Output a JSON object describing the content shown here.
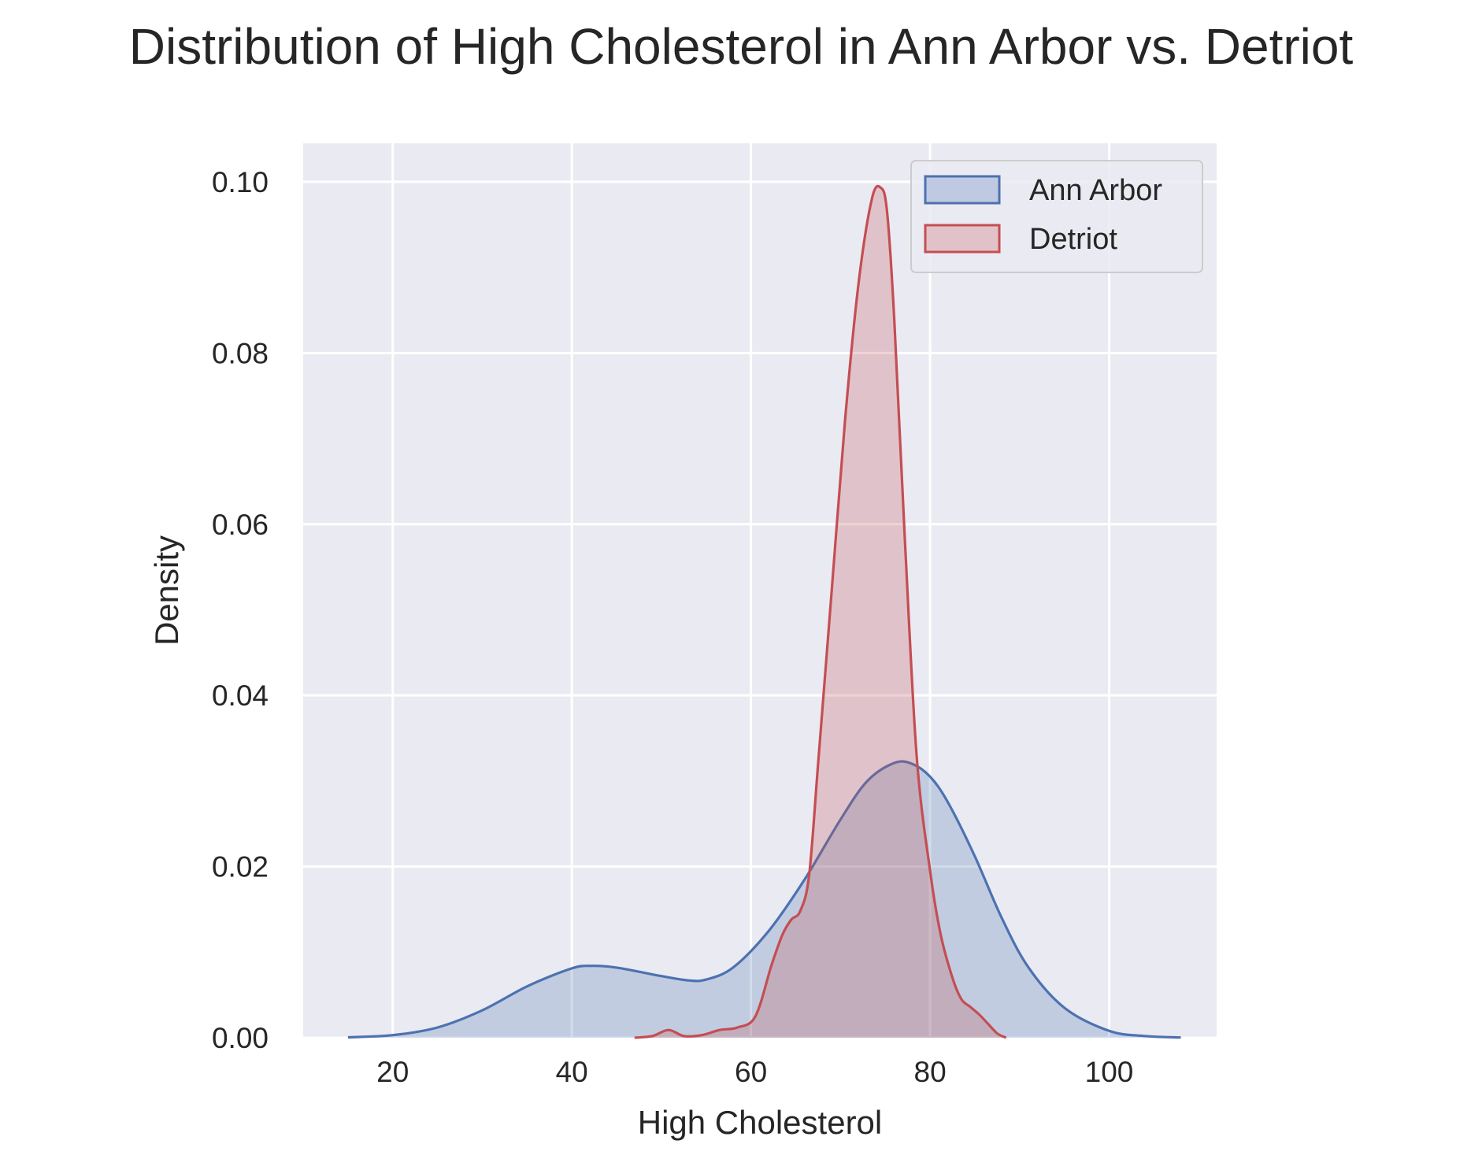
{
  "chart_data": {
    "type": "area",
    "title": "Distribution of High Cholesterol in Ann Arbor vs. Detriot",
    "xlabel": "High Cholesterol",
    "ylabel": "Density",
    "xlim": [
      10,
      112
    ],
    "ylim": [
      0,
      0.1045
    ],
    "x_ticks": [
      20,
      40,
      60,
      80,
      100
    ],
    "x_tick_labels": [
      "20",
      "40",
      "60",
      "80",
      "100"
    ],
    "y_ticks": [
      0,
      0.02,
      0.04,
      0.06,
      0.08,
      0.1
    ],
    "y_tick_labels": [
      "0.00",
      "0.02",
      "0.04",
      "0.06",
      "0.08",
      "0.10"
    ],
    "grid": true,
    "legend_position": "top-right",
    "series": [
      {
        "name": "Ann Arbor",
        "color": "#4c72b0",
        "fill": "#c0c9e2",
        "x": [
          15,
          20,
          25,
          30,
          35,
          40,
          42.3,
          45,
          50,
          53,
          55,
          58,
          62,
          66,
          70,
          73,
          76,
          78,
          80,
          82,
          85,
          88,
          91,
          95,
          100,
          104,
          108
        ],
        "y": [
          5e-05,
          0.0003,
          0.0012,
          0.0032,
          0.006,
          0.0081,
          0.0084,
          0.0082,
          0.0072,
          0.0067,
          0.0068,
          0.0082,
          0.0125,
          0.0185,
          0.0255,
          0.03,
          0.0321,
          0.032,
          0.0305,
          0.0275,
          0.0212,
          0.014,
          0.0082,
          0.0035,
          0.0008,
          0.0002,
          3e-05
        ]
      },
      {
        "name": "Detriot",
        "color": "#c44e52",
        "fill": "#e2c2c9",
        "x": [
          47,
          49,
          50.8,
          52.5,
          54.5,
          56.5,
          58.5,
          60.5,
          62.3,
          63.5,
          64.5,
          65.5,
          66.5,
          67.5,
          69,
          70.5,
          72,
          73.5,
          74.5,
          75.2,
          76,
          77.2,
          78.5,
          80,
          81.2,
          82.5,
          83.5,
          84.5,
          85.5,
          86.5,
          87.5,
          88.5
        ],
        "y": [
          0,
          0.0002,
          0.0009,
          0.0002,
          0.0003,
          0.0009,
          0.0012,
          0.0025,
          0.0085,
          0.012,
          0.0138,
          0.0148,
          0.019,
          0.032,
          0.052,
          0.072,
          0.088,
          0.098,
          0.0993,
          0.0965,
          0.084,
          0.058,
          0.033,
          0.0195,
          0.012,
          0.007,
          0.0045,
          0.0036,
          0.0027,
          0.0016,
          0.0005,
          0.0
        ]
      }
    ]
  },
  "colors": {
    "plot_background": "#eaeaf2",
    "grid": "#ffffff",
    "text": "#262626"
  }
}
